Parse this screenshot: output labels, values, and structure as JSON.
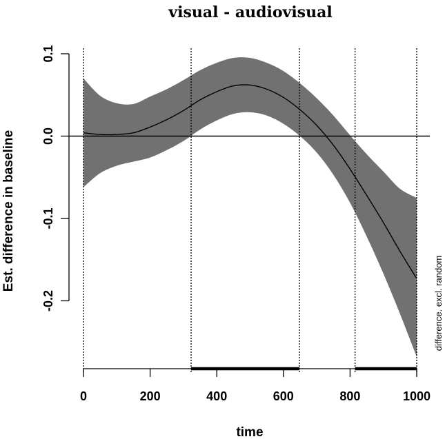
{
  "chart_data": {
    "type": "line",
    "title": "visual - audiovisual",
    "xlabel": "time",
    "ylabel": "Est. difference in baseline",
    "side_label": "difference. excl. random",
    "xlim": [
      0,
      1000
    ],
    "ylim": [
      -0.285,
      0.105
    ],
    "x_ticks": [
      0,
      200,
      400,
      600,
      800,
      1000
    ],
    "y_ticks": [
      -0.2,
      -0.1,
      0.0,
      0.1
    ],
    "y_tick_labels": [
      "-0.2",
      "-0.1",
      "0.0",
      "0.1"
    ],
    "reference_line": 0,
    "vertical_markers": [
      0,
      323,
      648,
      815,
      1000
    ],
    "significant_intervals": [
      [
        323,
        648
      ],
      [
        815,
        1000
      ]
    ],
    "series": [
      {
        "x": [
          0,
          50,
          100,
          150,
          200,
          250,
          300,
          350,
          400,
          450,
          500,
          550,
          600,
          650,
          700,
          750,
          800,
          850,
          900,
          950,
          1000
        ],
        "fit": [
          0.004,
          0.002,
          0.002,
          0.004,
          0.011,
          0.02,
          0.031,
          0.044,
          0.054,
          0.061,
          0.062,
          0.057,
          0.047,
          0.032,
          0.013,
          -0.011,
          -0.04,
          -0.072,
          -0.105,
          -0.14,
          -0.173
        ],
        "lower": [
          -0.062,
          -0.045,
          -0.036,
          -0.031,
          -0.026,
          -0.017,
          -0.006,
          0.008,
          0.019,
          0.027,
          0.029,
          0.025,
          0.015,
          0.0,
          -0.02,
          -0.047,
          -0.081,
          -0.122,
          -0.167,
          -0.216,
          -0.268
        ],
        "upper": [
          0.07,
          0.049,
          0.04,
          0.039,
          0.048,
          0.057,
          0.068,
          0.08,
          0.089,
          0.095,
          0.095,
          0.089,
          0.079,
          0.064,
          0.046,
          0.025,
          0.001,
          -0.022,
          -0.043,
          -0.064,
          -0.075
        ]
      }
    ]
  },
  "colors": {
    "band": "#717171",
    "line": "#000000",
    "axis": "#000000"
  }
}
